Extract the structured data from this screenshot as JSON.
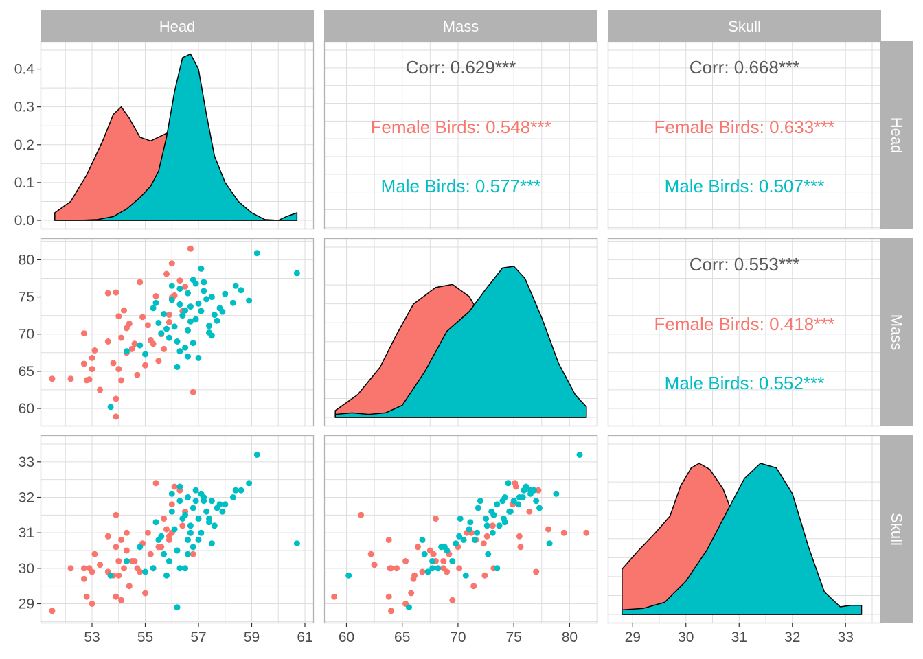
{
  "colors": {
    "female": "#F8766D",
    "male": "#00BFC4",
    "corr": "#595959",
    "strip": "#B3B3B3",
    "grid": "#DEDEDE",
    "panel_border": "#B3B3B3"
  },
  "variables": [
    "Head",
    "Mass",
    "Skull"
  ],
  "chart_data": {
    "type": "scatter",
    "series_names": {
      "female": "Female Birds",
      "male": "Male Birds"
    },
    "ranges": {
      "Head": [
        51.4,
        61.0
      ],
      "Mass": [
        58.8,
        81.7
      ],
      "Skull": [
        28.7,
        33.5
      ]
    },
    "ticks": {
      "Head": [
        "53",
        "55",
        "57",
        "59",
        "61"
      ],
      "Mass": [
        "60",
        "65",
        "70",
        "75",
        "80"
      ],
      "Skull": [
        "29",
        "30",
        "31",
        "32",
        "33"
      ],
      "Density": [
        "0.0",
        "0.1",
        "0.2",
        "0.3",
        "0.4"
      ]
    },
    "density_ylim": [
      0,
      0.45
    ],
    "correlations": {
      "Head-Mass": {
        "corr": "Corr: 0.629***",
        "female": "Female Birds: 0.548***",
        "male": "Male Birds: 0.577***"
      },
      "Head-Skull": {
        "corr": "Corr: 0.668***",
        "female": "Female Birds: 0.633***",
        "male": "Male Birds: 0.507***"
      },
      "Mass-Skull": {
        "corr": "Corr: 0.553***",
        "female": "Female Birds: 0.418***",
        "male": "Male Birds: 0.552***"
      }
    },
    "densities": {
      "Head": {
        "female": [
          [
            51.6,
            0.02
          ],
          [
            52.2,
            0.05
          ],
          [
            52.8,
            0.12
          ],
          [
            53.4,
            0.21
          ],
          [
            53.8,
            0.28
          ],
          [
            54.1,
            0.3
          ],
          [
            54.4,
            0.27
          ],
          [
            54.8,
            0.22
          ],
          [
            55.2,
            0.21
          ],
          [
            55.5,
            0.22
          ],
          [
            55.8,
            0.23
          ],
          [
            56.0,
            0.2
          ],
          [
            56.3,
            0.12
          ],
          [
            56.6,
            0.06
          ],
          [
            56.9,
            0.02
          ],
          [
            57.3,
            0.005
          ],
          [
            57.8,
            0.0
          ],
          [
            58.5,
            0.0
          ],
          [
            59.5,
            0.0
          ],
          [
            60.7,
            0.0
          ]
        ],
        "male": [
          [
            51.6,
            0.0
          ],
          [
            52.5,
            0.0
          ],
          [
            53.2,
            0.002
          ],
          [
            53.8,
            0.01
          ],
          [
            54.3,
            0.03
          ],
          [
            54.8,
            0.06
          ],
          [
            55.2,
            0.09
          ],
          [
            55.5,
            0.13
          ],
          [
            55.8,
            0.22
          ],
          [
            56.1,
            0.34
          ],
          [
            56.4,
            0.43
          ],
          [
            56.7,
            0.44
          ],
          [
            57.0,
            0.4
          ],
          [
            57.3,
            0.28
          ],
          [
            57.6,
            0.17
          ],
          [
            58.0,
            0.1
          ],
          [
            58.5,
            0.05
          ],
          [
            59.0,
            0.02
          ],
          [
            59.5,
            0.002
          ],
          [
            60.0,
            0.0
          ],
          [
            60.3,
            0.01
          ],
          [
            60.7,
            0.02
          ]
        ]
      },
      "Mass": {
        "female": [
          [
            59.0,
            0.045
          ],
          [
            61.0,
            0.15
          ],
          [
            63.0,
            0.33
          ],
          [
            64.5,
            0.55
          ],
          [
            66.0,
            0.75
          ],
          [
            68.0,
            0.86
          ],
          [
            69.5,
            0.88
          ],
          [
            71.0,
            0.8
          ],
          [
            73.0,
            0.55
          ],
          [
            75.0,
            0.3
          ],
          [
            77.0,
            0.12
          ],
          [
            79.0,
            0.04
          ],
          [
            81.5,
            0.005
          ]
        ],
        "male": [
          [
            59.0,
            0.02
          ],
          [
            60.5,
            0.03
          ],
          [
            62.0,
            0.02
          ],
          [
            63.5,
            0.03
          ],
          [
            65.0,
            0.08
          ],
          [
            67.0,
            0.3
          ],
          [
            69.0,
            0.57
          ],
          [
            71.0,
            0.7
          ],
          [
            72.5,
            0.85
          ],
          [
            74.0,
            0.99
          ],
          [
            75.0,
            1.0
          ],
          [
            76.0,
            0.92
          ],
          [
            77.5,
            0.66
          ],
          [
            79.0,
            0.36
          ],
          [
            80.5,
            0.15
          ],
          [
            81.5,
            0.07
          ]
        ]
      },
      "Skull": {
        "female": [
          [
            28.8,
            0.3
          ],
          [
            29.1,
            0.42
          ],
          [
            29.4,
            0.53
          ],
          [
            29.7,
            0.65
          ],
          [
            29.9,
            0.85
          ],
          [
            30.1,
            0.97
          ],
          [
            30.25,
            1.0
          ],
          [
            30.45,
            0.96
          ],
          [
            30.7,
            0.83
          ],
          [
            31.0,
            0.55
          ],
          [
            31.3,
            0.35
          ],
          [
            31.6,
            0.18
          ],
          [
            32.0,
            0.06
          ],
          [
            32.5,
            0.01
          ],
          [
            33.3,
            0.0
          ]
        ],
        "male": [
          [
            28.8,
            0.03
          ],
          [
            29.2,
            0.04
          ],
          [
            29.6,
            0.08
          ],
          [
            30.0,
            0.22
          ],
          [
            30.4,
            0.43
          ],
          [
            30.8,
            0.7
          ],
          [
            31.1,
            0.9
          ],
          [
            31.4,
            1.0
          ],
          [
            31.7,
            0.97
          ],
          [
            32.0,
            0.8
          ],
          [
            32.3,
            0.45
          ],
          [
            32.6,
            0.15
          ],
          [
            32.9,
            0.05
          ],
          [
            33.1,
            0.06
          ],
          [
            33.3,
            0.06
          ]
        ]
      }
    },
    "points": {
      "female": [
        [
          51.5,
          64.0,
          28.8
        ],
        [
          52.2,
          64.0,
          30.0
        ],
        [
          52.7,
          66.0,
          29.7
        ],
        [
          52.7,
          70.1,
          30.0
        ],
        [
          52.8,
          63.8,
          29.2
        ],
        [
          52.9,
          63.9,
          30.0
        ],
        [
          53.0,
          66.8,
          29.9
        ],
        [
          53.0,
          65.3,
          29.0
        ],
        [
          53.6,
          69.0,
          29.9
        ],
        [
          53.8,
          66.1,
          29.8
        ],
        [
          53.9,
          61.3,
          31.5
        ],
        [
          53.9,
          58.9,
          29.2
        ],
        [
          53.9,
          75.6,
          30.6
        ],
        [
          54.0,
          65.3,
          30.2
        ],
        [
          54.1,
          63.8,
          30.8
        ],
        [
          54.2,
          73.2,
          30.0
        ],
        [
          54.3,
          70.8,
          31.0
        ],
        [
          54.4,
          71.4,
          29.5
        ],
        [
          54.6,
          68.7,
          30.2
        ],
        [
          54.8,
          77.0,
          29.9
        ],
        [
          54.9,
          72.3,
          30.7
        ],
        [
          55.1,
          71.2,
          31.0
        ],
        [
          55.3,
          68.7,
          30.0
        ],
        [
          55.4,
          75.1,
          32.4
        ],
        [
          55.5,
          66.4,
          30.6
        ],
        [
          55.7,
          68.0,
          31.4
        ],
        [
          55.9,
          71.6,
          30.8
        ],
        [
          56.0,
          79.5,
          31.0
        ],
        [
          56.0,
          74.9,
          31.8
        ],
        [
          56.3,
          77.2,
          32.2
        ],
        [
          56.4,
          73.1,
          31.2
        ],
        [
          56.7,
          81.5,
          31.0
        ],
        [
          56.8,
          62.2,
          30.4
        ],
        [
          53.6,
          75.5,
          30.9
        ],
        [
          54.0,
          72.4,
          29.8
        ],
        [
          54.3,
          67.5,
          30.5
        ],
        [
          55.0,
          65.8,
          29.3
        ],
        [
          54.7,
          64.5,
          30.0
        ],
        [
          55.6,
          70.0,
          30.6
        ],
        [
          56.1,
          75.2,
          32.3
        ],
        [
          53.3,
          62.5,
          30.1
        ],
        [
          54.1,
          69.5,
          29.1
        ],
        [
          55.2,
          69.2,
          30.4
        ],
        [
          55.8,
          78.1,
          31.1
        ],
        [
          56.5,
          76.4,
          31.6
        ],
        [
          53.1,
          67.8,
          30.4
        ],
        [
          54.5,
          68.0,
          30.2
        ],
        [
          55.9,
          72.6,
          30.9
        ]
      ],
      "male": [
        [
          53.7,
          60.2,
          29.8
        ],
        [
          54.3,
          67.7,
          30.2
        ],
        [
          54.8,
          68.5,
          30.6
        ],
        [
          55.0,
          67.3,
          29.9
        ],
        [
          55.3,
          73.5,
          30.0
        ],
        [
          55.5,
          71.5,
          30.8
        ],
        [
          55.7,
          72.7,
          30.4
        ],
        [
          55.8,
          70.7,
          29.8
        ],
        [
          56.0,
          74.6,
          31.6
        ],
        [
          56.1,
          71.0,
          31.1
        ],
        [
          56.2,
          65.6,
          28.9
        ],
        [
          56.3,
          76.1,
          32.3
        ],
        [
          56.3,
          74.0,
          31.9
        ],
        [
          56.4,
          72.5,
          31.4
        ],
        [
          56.5,
          68.2,
          30.0
        ],
        [
          56.6,
          75.5,
          32.0
        ],
        [
          56.6,
          70.5,
          30.8
        ],
        [
          56.7,
          73.7,
          31.2
        ],
        [
          56.8,
          77.3,
          31.7
        ],
        [
          56.9,
          72.0,
          31.9
        ],
        [
          56.9,
          76.8,
          32.2
        ],
        [
          57.0,
          74.1,
          31.4
        ],
        [
          57.1,
          73.1,
          31.0
        ],
        [
          57.1,
          78.8,
          32.1
        ],
        [
          57.2,
          75.8,
          32.0
        ],
        [
          57.3,
          74.7,
          31.6
        ],
        [
          57.4,
          71.1,
          31.3
        ],
        [
          57.5,
          69.8,
          30.7
        ],
        [
          57.6,
          72.6,
          31.2
        ],
        [
          57.8,
          73.5,
          31.8
        ],
        [
          58.0,
          75.4,
          31.8
        ],
        [
          58.3,
          74.2,
          32.0
        ],
        [
          58.4,
          76.5,
          32.2
        ],
        [
          58.6,
          75.9,
          32.2
        ],
        [
          58.9,
          74.5,
          32.4
        ],
        [
          59.2,
          80.9,
          33.2
        ],
        [
          60.7,
          78.2,
          30.7
        ],
        [
          56.3,
          67.7,
          30.0
        ],
        [
          56.6,
          67.0,
          30.4
        ],
        [
          57.0,
          66.8,
          30.8
        ],
        [
          55.9,
          69.5,
          30.2
        ],
        [
          56.8,
          68.8,
          30.6
        ],
        [
          57.4,
          70.2,
          31.4
        ],
        [
          57.7,
          71.8,
          31.7
        ],
        [
          56.5,
          73.2,
          31.5
        ],
        [
          55.6,
          70.1,
          30.9
        ],
        [
          57.2,
          77.0,
          31.9
        ],
        [
          56.0,
          76.5,
          32.1
        ],
        [
          57.9,
          73.0,
          31.6
        ],
        [
          56.2,
          69.0,
          30.5
        ],
        [
          56.7,
          71.7,
          31.0
        ],
        [
          57.5,
          75.0,
          31.9
        ],
        [
          55.4,
          74.2,
          31.3
        ]
      ]
    }
  }
}
